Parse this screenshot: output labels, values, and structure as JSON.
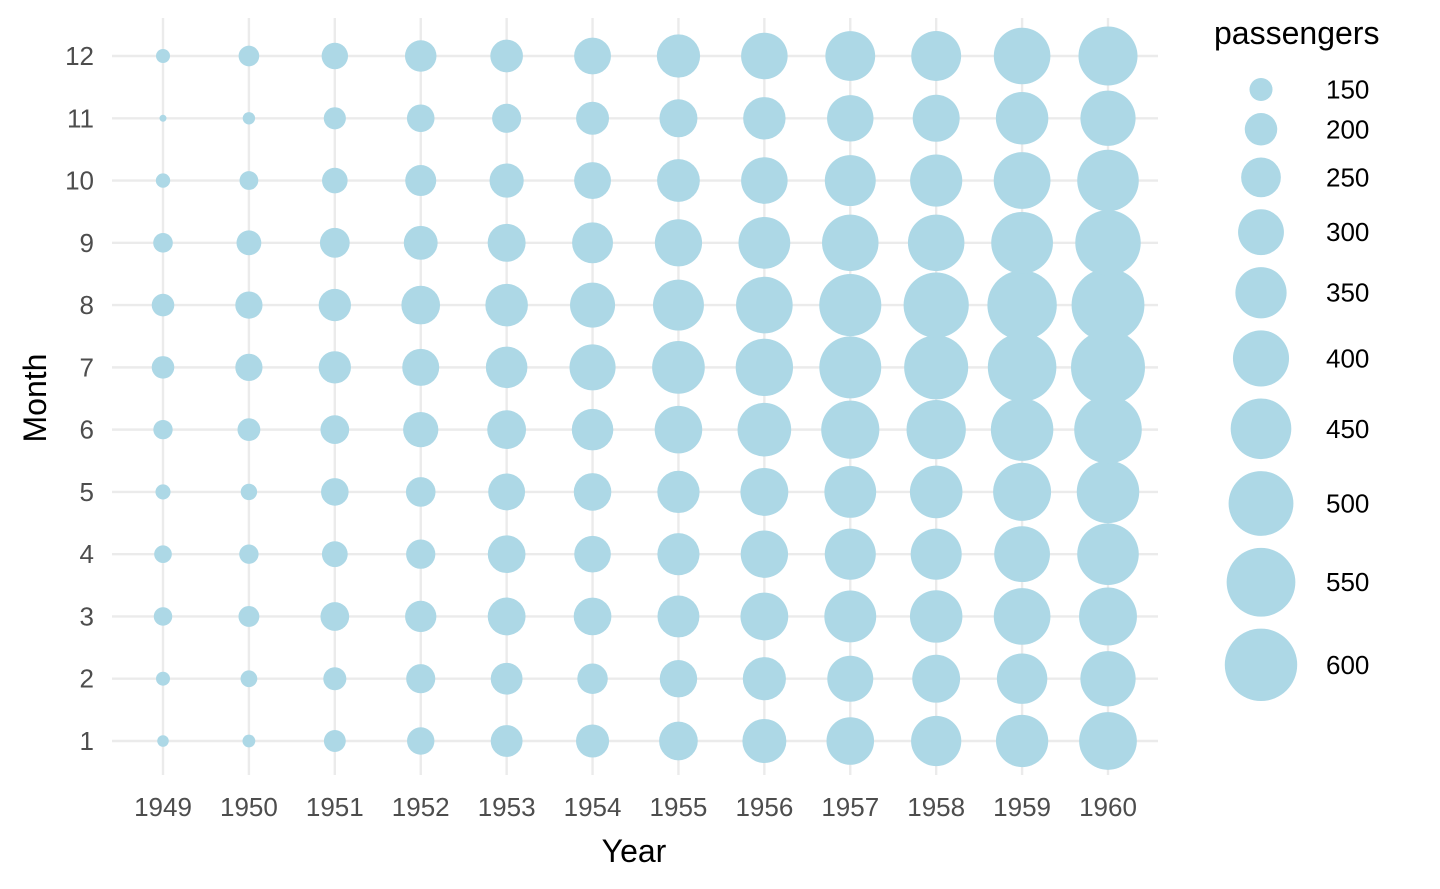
{
  "chart_data": {
    "type": "scatter",
    "subtype": "bubble",
    "xlabel": "Year",
    "ylabel": "Month",
    "legend_title": "passengers",
    "legend_placement": "right",
    "grid": true,
    "point_color": "#add8e6",
    "x": [
      1949,
      1950,
      1951,
      1952,
      1953,
      1954,
      1955,
      1956,
      1957,
      1958,
      1959,
      1960
    ],
    "y": [
      1,
      2,
      3,
      4,
      5,
      6,
      7,
      8,
      9,
      10,
      11,
      12
    ],
    "passengers": [
      [
        112,
        118,
        132,
        129,
        121,
        135,
        148,
        148,
        136,
        119,
        104,
        118
      ],
      [
        115,
        126,
        141,
        135,
        125,
        149,
        170,
        170,
        158,
        133,
        114,
        140
      ],
      [
        145,
        150,
        178,
        163,
        172,
        178,
        199,
        199,
        184,
        162,
        146,
        166
      ],
      [
        171,
        180,
        193,
        181,
        183,
        218,
        230,
        242,
        209,
        191,
        172,
        194
      ],
      [
        196,
        196,
        236,
        235,
        229,
        243,
        264,
        272,
        237,
        211,
        180,
        201
      ],
      [
        204,
        188,
        235,
        227,
        234,
        264,
        302,
        293,
        259,
        229,
        203,
        229
      ],
      [
        242,
        233,
        267,
        269,
        270,
        315,
        364,
        347,
        312,
        274,
        237,
        278
      ],
      [
        284,
        277,
        317,
        313,
        318,
        374,
        413,
        405,
        355,
        306,
        271,
        306
      ],
      [
        315,
        301,
        356,
        348,
        355,
        422,
        465,
        467,
        404,
        347,
        305,
        336
      ],
      [
        340,
        318,
        362,
        348,
        363,
        435,
        491,
        505,
        404,
        359,
        310,
        337
      ],
      [
        360,
        342,
        406,
        396,
        420,
        472,
        548,
        559,
        463,
        407,
        362,
        405
      ],
      [
        417,
        391,
        419,
        461,
        472,
        535,
        622,
        606,
        508,
        461,
        390,
        432
      ]
    ],
    "legend_breaks": [
      150,
      200,
      250,
      300,
      350,
      400,
      450,
      500,
      550,
      600
    ],
    "size_range": [
      104,
      622
    ]
  }
}
